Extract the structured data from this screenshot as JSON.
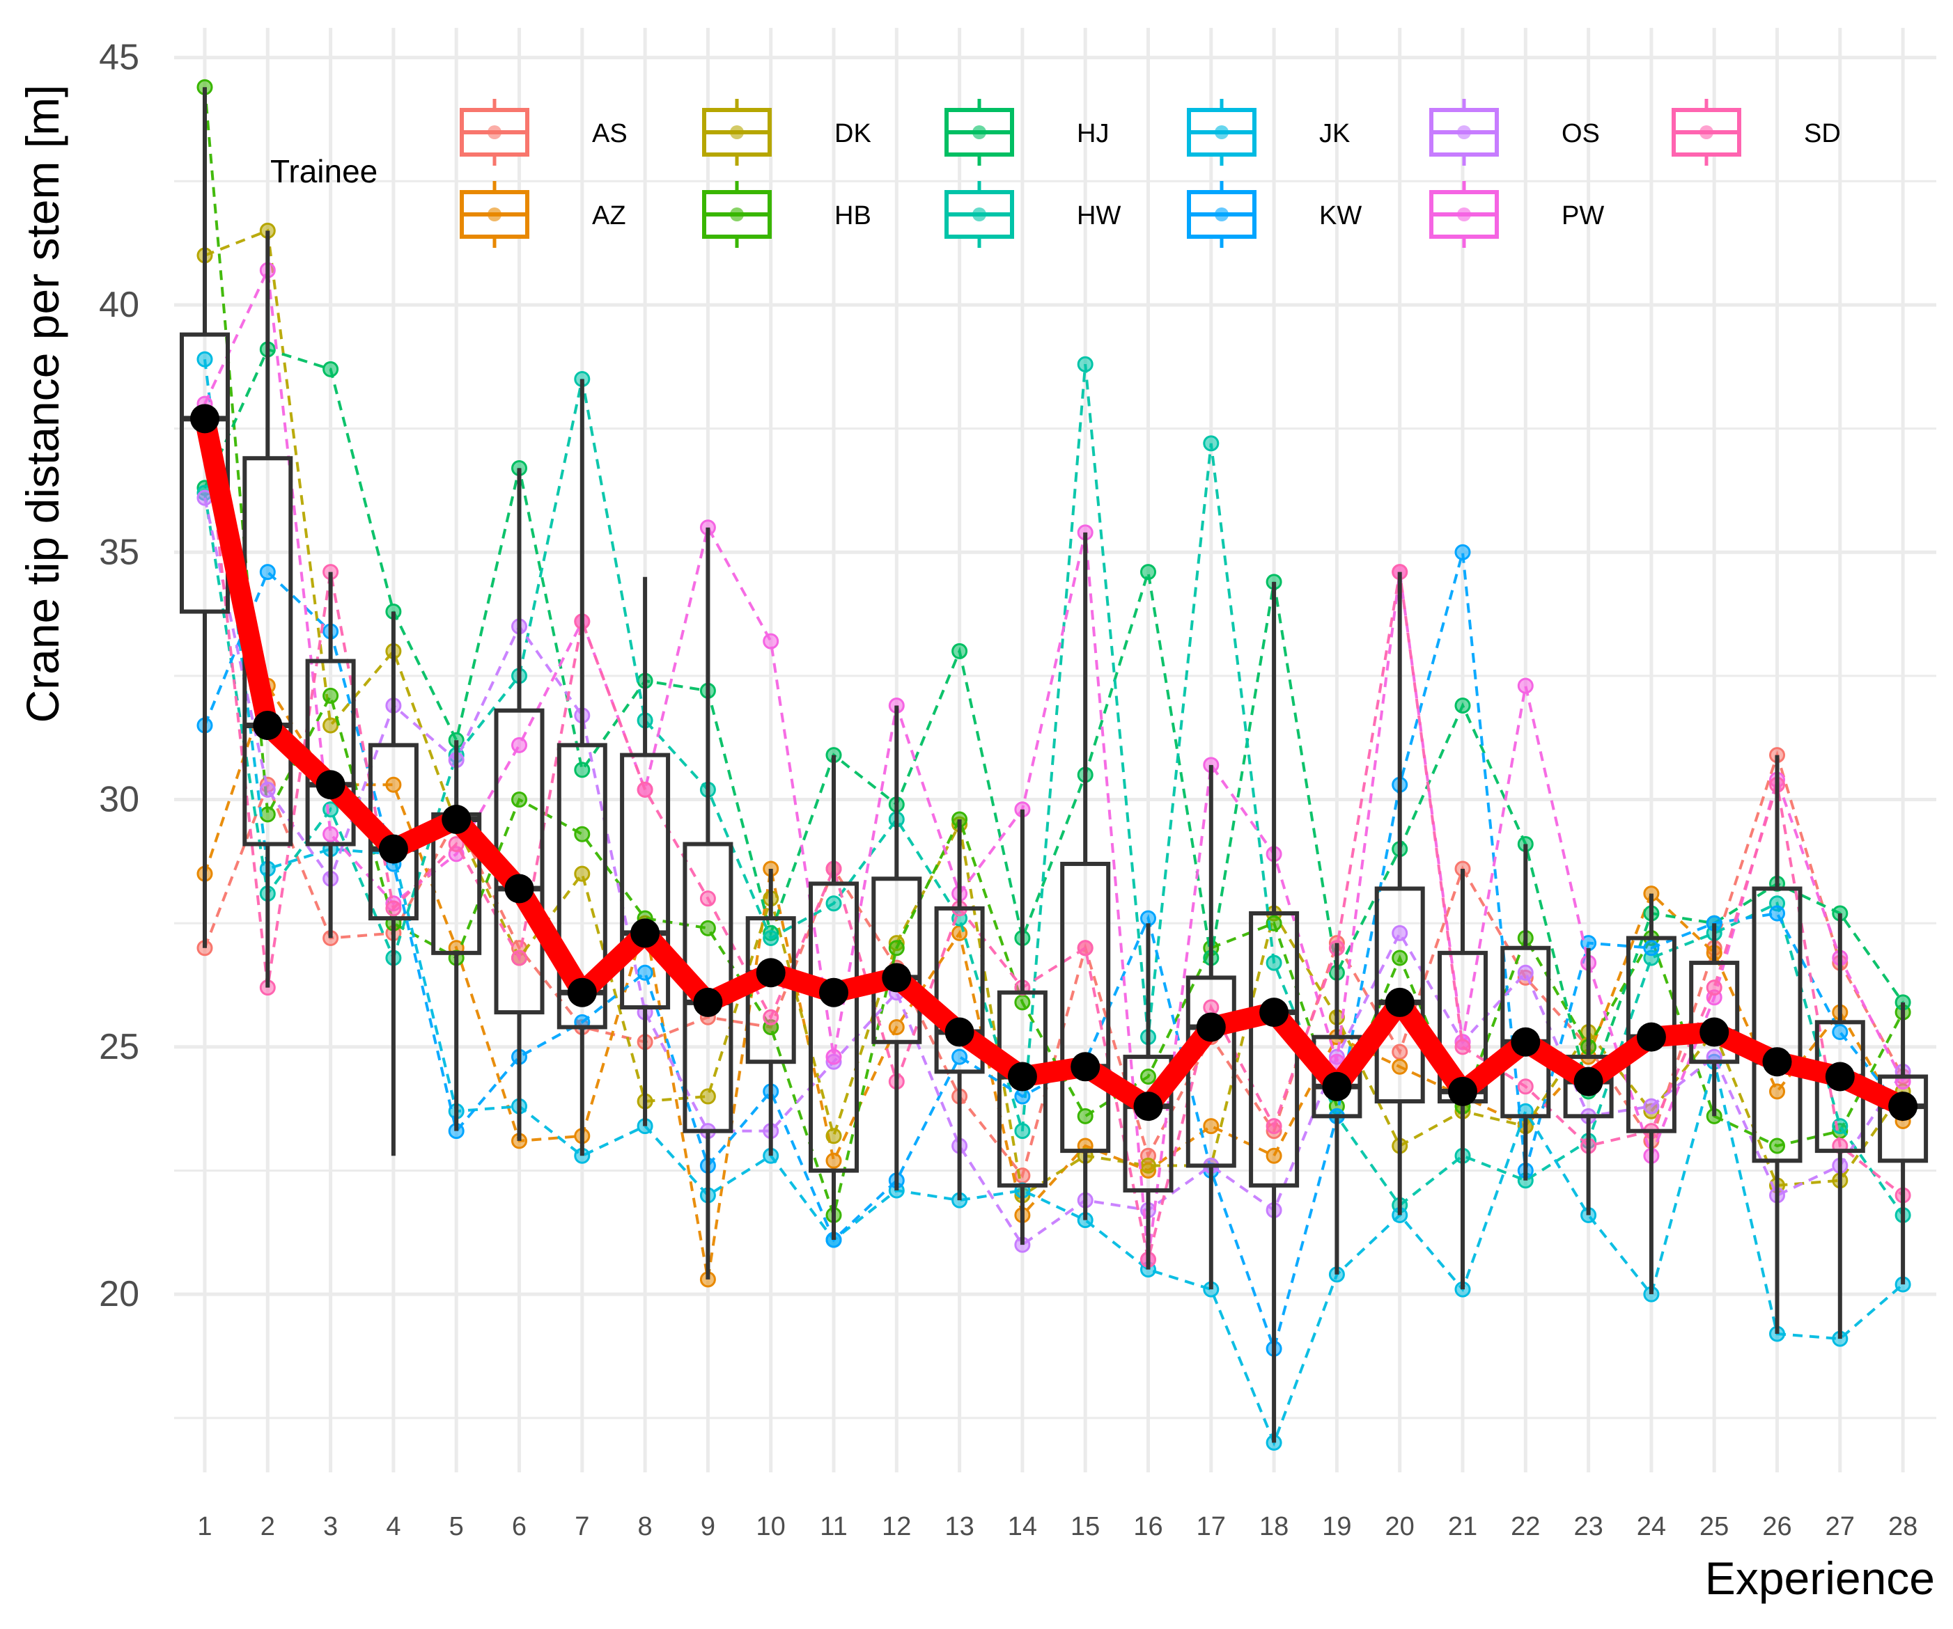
{
  "chart_data": {
    "type": "box",
    "title": "",
    "xlabel": "Experience",
    "ylabel": "Crane tip distance per stem [m]",
    "xlim": [
      0.5,
      28.5
    ],
    "ylim": [
      16.4,
      45.6
    ],
    "x_ticks": [
      "1",
      "2",
      "3",
      "4",
      "5",
      "6",
      "7",
      "8",
      "9",
      "10",
      "11",
      "12",
      "13",
      "14",
      "15",
      "16",
      "17",
      "18",
      "19",
      "20",
      "21",
      "22",
      "23",
      "24",
      "25",
      "26",
      "27",
      "28"
    ],
    "y_ticks": [
      20,
      25,
      30,
      35,
      40,
      45
    ],
    "grid": true,
    "legend": {
      "title": "Trainee",
      "placement": "top-right",
      "entries": [
        "AS",
        "AZ",
        "DK",
        "HB",
        "HJ",
        "HW",
        "JK",
        "KW",
        "OS",
        "PW",
        "SD"
      ]
    },
    "colors": {
      "AS": "#F8766D",
      "AZ": "#E88800",
      "DK": "#B6A600",
      "HB": "#39B600",
      "HJ": "#00BF63",
      "HW": "#00C4A8",
      "JK": "#00BBE2",
      "KW": "#00A5FF",
      "OS": "#C77CFF",
      "PW": "#F564E3",
      "SD": "#FF64B0",
      "mean_line": "#FF0000",
      "mean_point": "#000000",
      "box": "#333333"
    },
    "boxes": [
      {
        "x": 1,
        "min": 27.0,
        "q1": 33.8,
        "median": 37.7,
        "q3": 39.4,
        "max": 44.4
      },
      {
        "x": 2,
        "min": 26.2,
        "q1": 29.1,
        "median": 31.5,
        "q3": 36.9,
        "max": 41.5
      },
      {
        "x": 3,
        "min": 27.2,
        "q1": 29.1,
        "median": 30.3,
        "q3": 32.8,
        "max": 34.6
      },
      {
        "x": 4,
        "min": 22.8,
        "q1": 27.6,
        "median": 29.0,
        "q3": 31.1,
        "max": 33.8
      },
      {
        "x": 5,
        "min": 23.3,
        "q1": 26.9,
        "median": 29.6,
        "q3": 29.7,
        "max": 31.2
      },
      {
        "x": 6,
        "min": 23.1,
        "q1": 25.7,
        "median": 28.2,
        "q3": 31.8,
        "max": 36.7
      },
      {
        "x": 7,
        "min": 22.8,
        "q1": 25.4,
        "median": 26.1,
        "q3": 31.1,
        "max": 38.5
      },
      {
        "x": 8,
        "min": 23.4,
        "q1": 25.8,
        "median": 27.3,
        "q3": 30.9,
        "max": 34.5
      },
      {
        "x": 9,
        "min": 20.3,
        "q1": 23.3,
        "median": 25.9,
        "q3": 29.1,
        "max": 35.5
      },
      {
        "x": 10,
        "min": 22.8,
        "q1": 24.7,
        "median": 26.5,
        "q3": 27.6,
        "max": 28.6
      },
      {
        "x": 11,
        "min": 21.1,
        "q1": 22.5,
        "median": 26.1,
        "q3": 28.3,
        "max": 30.9
      },
      {
        "x": 12,
        "min": 22.1,
        "q1": 25.1,
        "median": 26.4,
        "q3": 28.4,
        "max": 31.9
      },
      {
        "x": 13,
        "min": 21.9,
        "q1": 24.5,
        "median": 25.3,
        "q3": 27.8,
        "max": 29.6
      },
      {
        "x": 14,
        "min": 21.0,
        "q1": 22.2,
        "median": 24.4,
        "q3": 26.1,
        "max": 29.8
      },
      {
        "x": 15,
        "min": 21.5,
        "q1": 22.9,
        "median": 24.6,
        "q3": 28.7,
        "max": 35.4
      },
      {
        "x": 16,
        "min": 20.5,
        "q1": 22.1,
        "median": 23.8,
        "q3": 24.8,
        "max": 27.5
      },
      {
        "x": 17,
        "min": 20.1,
        "q1": 22.6,
        "median": 25.4,
        "q3": 26.4,
        "max": 30.7
      },
      {
        "x": 18,
        "min": 17.0,
        "q1": 22.2,
        "median": 25.7,
        "q3": 27.7,
        "max": 34.4
      },
      {
        "x": 19,
        "min": 20.4,
        "q1": 23.6,
        "median": 24.2,
        "q3": 25.2,
        "max": 27.1
      },
      {
        "x": 20,
        "min": 21.6,
        "q1": 23.9,
        "median": 25.9,
        "q3": 28.2,
        "max": 34.6
      },
      {
        "x": 21,
        "min": 20.1,
        "q1": 23.9,
        "median": 24.1,
        "q3": 26.9,
        "max": 28.6
      },
      {
        "x": 22,
        "min": 22.3,
        "q1": 23.6,
        "median": 25.1,
        "q3": 27.0,
        "max": 29.1
      },
      {
        "x": 23,
        "min": 21.6,
        "q1": 23.6,
        "median": 24.3,
        "q3": 24.8,
        "max": 27.0
      },
      {
        "x": 24,
        "min": 20.0,
        "q1": 23.3,
        "median": 25.2,
        "q3": 27.2,
        "max": 28.1
      },
      {
        "x": 25,
        "min": 23.6,
        "q1": 24.7,
        "median": 25.3,
        "q3": 26.7,
        "max": 27.5
      },
      {
        "x": 26,
        "min": 19.2,
        "q1": 22.7,
        "median": 24.7,
        "q3": 28.2,
        "max": 30.9
      },
      {
        "x": 27,
        "min": 19.1,
        "q1": 22.9,
        "median": 24.4,
        "q3": 25.5,
        "max": 27.7
      },
      {
        "x": 28,
        "min": 20.2,
        "q1": 22.7,
        "median": 23.8,
        "q3": 24.4,
        "max": 25.9
      }
    ],
    "mean_line": [
      37.7,
      31.5,
      30.3,
      29.0,
      29.6,
      28.2,
      26.1,
      27.3,
      25.9,
      26.5,
      26.1,
      26.4,
      25.3,
      24.4,
      24.6,
      23.8,
      25.4,
      25.7,
      24.2,
      25.9,
      24.1,
      25.1,
      24.3,
      25.2,
      25.3,
      24.7,
      24.4,
      23.8
    ],
    "series": [
      {
        "name": "AS",
        "values": [
          27.0,
          30.3,
          27.2,
          27.3,
          29.6,
          27.0,
          25.4,
          25.1,
          25.6,
          25.4,
          28.6,
          26.6,
          24.0,
          22.4,
          27.0,
          22.8,
          25.2,
          23.3,
          27.1,
          24.9,
          28.6,
          26.4,
          25.0,
          23.1,
          27.0,
          30.9,
          26.7,
          24.4
        ]
      },
      {
        "name": "AZ",
        "values": [
          28.5,
          32.3,
          30.3,
          30.3,
          27.0,
          23.1,
          23.2,
          27.5,
          20.3,
          28.6,
          22.7,
          25.4,
          27.3,
          21.6,
          23.0,
          22.5,
          23.4,
          22.8,
          25.2,
          24.6,
          24.0,
          23.4,
          24.8,
          28.1,
          26.9,
          24.1,
          25.7,
          23.5
        ]
      },
      {
        "name": "DK",
        "values": [
          41.0,
          41.5,
          31.5,
          33.0,
          29.5,
          26.8,
          28.5,
          23.9,
          24.0,
          28.0,
          23.2,
          27.1,
          29.5,
          22.0,
          22.8,
          22.6,
          22.6,
          27.7,
          25.6,
          23.0,
          23.7,
          23.4,
          25.3,
          23.7,
          25.3,
          22.2,
          22.3,
          24.1
        ]
      },
      {
        "name": "HB",
        "values": [
          44.4,
          29.7,
          32.1,
          27.5,
          26.8,
          30.0,
          29.3,
          27.6,
          27.4,
          25.4,
          21.6,
          27.0,
          29.6,
          25.9,
          23.6,
          24.4,
          27.0,
          27.5,
          23.8,
          26.8,
          23.8,
          27.2,
          25.0,
          27.2,
          23.6,
          23.0,
          23.3,
          25.7
        ]
      },
      {
        "name": "HJ",
        "values": [
          36.3,
          39.1,
          38.7,
          33.8,
          31.2,
          36.7,
          30.6,
          32.4,
          32.2,
          27.3,
          30.9,
          29.9,
          33.0,
          27.2,
          30.5,
          34.6,
          26.8,
          34.4,
          26.5,
          29.0,
          31.9,
          29.1,
          24.1,
          27.7,
          27.5,
          28.3,
          27.7,
          25.9
        ]
      },
      {
        "name": "HW",
        "values": [
          36.2,
          28.1,
          29.8,
          26.8,
          30.9,
          32.5,
          38.5,
          31.6,
          30.2,
          27.2,
          27.9,
          29.6,
          27.6,
          23.3,
          38.8,
          25.2,
          37.2,
          26.7,
          23.6,
          21.8,
          22.8,
          22.3,
          23.1,
          26.8,
          27.3,
          27.9,
          23.4,
          21.6
        ]
      },
      {
        "name": "JK",
        "values": [
          38.9,
          28.6,
          29.0,
          28.9,
          23.7,
          23.8,
          22.8,
          23.4,
          22.0,
          22.8,
          21.1,
          22.1,
          21.9,
          22.1,
          21.5,
          20.5,
          20.1,
          17.0,
          20.4,
          21.6,
          20.1,
          23.7,
          21.6,
          20.0,
          24.7,
          19.2,
          19.1,
          20.2
        ]
      },
      {
        "name": "KW",
        "values": [
          31.5,
          34.6,
          33.4,
          28.7,
          23.3,
          24.8,
          25.5,
          26.5,
          22.6,
          24.1,
          21.1,
          22.3,
          24.8,
          24.0,
          24.7,
          27.6,
          22.5,
          18.9,
          23.6,
          30.3,
          35.0,
          22.5,
          27.1,
          27.0,
          27.5,
          27.7,
          25.3,
          23.7
        ]
      },
      {
        "name": "OS",
        "values": [
          36.1,
          30.2,
          28.4,
          31.9,
          30.8,
          33.5,
          31.7,
          25.7,
          23.3,
          23.3,
          24.7,
          26.1,
          23.0,
          21.0,
          21.9,
          21.7,
          22.6,
          21.7,
          24.8,
          27.3,
          25.1,
          26.5,
          23.6,
          23.8,
          24.8,
          22.0,
          22.6,
          24.5
        ]
      },
      {
        "name": "PW",
        "values": [
          38.0,
          40.7,
          29.3,
          27.9,
          28.9,
          31.1,
          33.6,
          30.2,
          35.5,
          33.2,
          24.8,
          31.9,
          28.1,
          29.8,
          35.4,
          20.7,
          30.7,
          28.9,
          24.7,
          34.6,
          25.1,
          32.3,
          26.7,
          22.8,
          26.0,
          30.4,
          26.8,
          24.3
        ]
      },
      {
        "name": "SD",
        "values": [
          37.8,
          26.2,
          34.6,
          27.8,
          29.1,
          26.8,
          33.6,
          30.2,
          28.0,
          25.6,
          28.6,
          24.3,
          27.8,
          26.2,
          27.0,
          20.7,
          25.8,
          23.4,
          27.0,
          34.6,
          25.0,
          24.2,
          23.0,
          23.3,
          26.2,
          30.3,
          23.0,
          22.0
        ]
      }
    ]
  }
}
